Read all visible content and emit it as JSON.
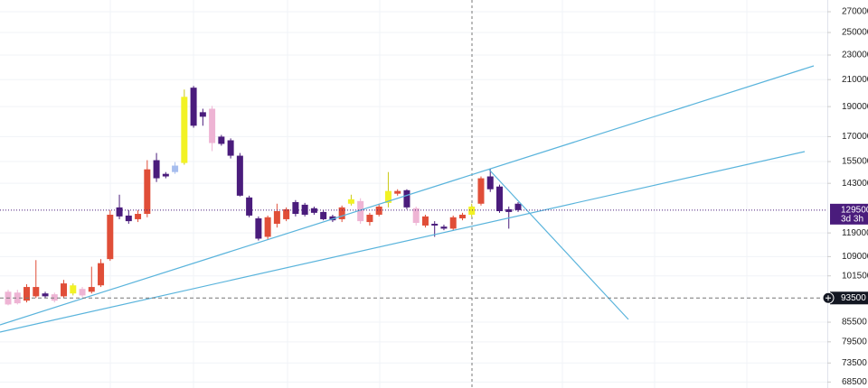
{
  "chart_data": {
    "type": "candlestick",
    "log_scale": true,
    "ylim": [
      67000,
      282000
    ],
    "yticks": [
      270000,
      250000,
      230000,
      210000,
      190000,
      170000,
      155000,
      143000,
      119000,
      109000,
      101500,
      85500,
      79500,
      73500,
      68500
    ],
    "grid": true,
    "last_price": 129500,
    "countdown": "3d 3h",
    "crosshair_price": 93500,
    "open": [
      95700,
      95400,
      92600,
      94100,
      95100,
      94800,
      94100,
      95100,
      96700,
      95700,
      98000,
      108000,
      130800,
      126900,
      125200,
      127700,
      155800,
      148100,
      149100,
      154200,
      203800,
      186100,
      188500,
      170000,
      167700,
      158400,
      135700,
      125600,
      117300,
      123100,
      125200,
      133400,
      132100,
      130400,
      128600,
      126500,
      125200,
      132600,
      133900,
      123900,
      127300,
      133000,
      137600,
      139400,
      130400,
      122300,
      123100,
      121800,
      120900,
      125600,
      127300,
      132600,
      146700,
      141300,
      129900,
      132600
    ],
    "high": [
      96400,
      96400,
      98400,
      107600,
      95700,
      95400,
      100000,
      98700,
      97400,
      105000,
      108000,
      129500,
      137100,
      129500,
      129500,
      155800,
      160000,
      149100,
      154700,
      202400,
      205100,
      188500,
      190500,
      171100,
      168900,
      160000,
      136600,
      126500,
      126900,
      132600,
      130800,
      134400,
      133000,
      131200,
      129500,
      127300,
      131700,
      137100,
      135300,
      128200,
      132600,
      149100,
      139900,
      139900,
      131200,
      127300,
      124300,
      122700,
      126900,
      128200,
      132600,
      146700,
      151100,
      142300,
      131200,
      133400
    ],
    "low": [
      91000,
      91300,
      92000,
      93500,
      93500,
      92000,
      93500,
      94400,
      93800,
      95100,
      97400,
      107300,
      125200,
      123100,
      123900,
      126100,
      143700,
      145700,
      148100,
      153200,
      175700,
      177000,
      161100,
      164400,
      156800,
      136200,
      126100,
      115700,
      116100,
      121400,
      124300,
      126500,
      126500,
      127300,
      124700,
      123900,
      123900,
      131700,
      123100,
      122300,
      126500,
      130800,
      136600,
      129900,
      122300,
      121400,
      117300,
      120200,
      120200,
      124700,
      126100,
      131700,
      138500,
      128200,
      120900,
      128600
    ],
    "close": [
      91300,
      91700,
      97400,
      97400,
      94100,
      92600,
      98700,
      98000,
      94400,
      97400,
      106400,
      127300,
      126500,
      124300,
      127700,
      150600,
      145700,
      146700,
      152700,
      197000,
      177000,
      183000,
      166000,
      165500,
      158400,
      136600,
      126900,
      116500,
      126100,
      129000,
      129900,
      127700,
      127300,
      128200,
      125200,
      124700,
      130800,
      134800,
      124300,
      127300,
      131200,
      139000,
      139000,
      130800,
      123500,
      126500,
      122300,
      120900,
      126100,
      127300,
      131200,
      145700,
      139900,
      129000,
      128600,
      129500
    ],
    "colors": [
      "#eeb4d4",
      "#eeb4d4",
      "#e04e38",
      "#e04e38",
      "#4a1c7c",
      "#eeb4d4",
      "#e04e38",
      "#f2f224",
      "#eeb4d4",
      "#e04e38",
      "#e04e38",
      "#e04e38",
      "#4a1c7c",
      "#4a1c7c",
      "#e04e38",
      "#e04e38",
      "#4a1c7c",
      "#4a1c7c",
      "#a6bdee",
      "#f2f224",
      "#4a1c7c",
      "#4a1c7c",
      "#eeb4d4",
      "#4a1c7c",
      "#4a1c7c",
      "#4a1c7c",
      "#4a1c7c",
      "#4a1c7c",
      "#e04e38",
      "#e04e38",
      "#e04e38",
      "#4a1c7c",
      "#4a1c7c",
      "#4a1c7c",
      "#4a1c7c",
      "#4a1c7c",
      "#e04e38",
      "#f2f224",
      "#eeb4d4",
      "#e04e38",
      "#e04e38",
      "#f2f224",
      "#e04e38",
      "#4a1c7c",
      "#eeb4d4",
      "#e04e38",
      "#4a1c7c",
      "#4a1c7c",
      "#e04e38",
      "#e04e38",
      "#f2f224",
      "#e04e38",
      "#4a1c7c",
      "#4a1c7c",
      "#4a1c7c",
      "#4a1c7c"
    ]
  }
}
